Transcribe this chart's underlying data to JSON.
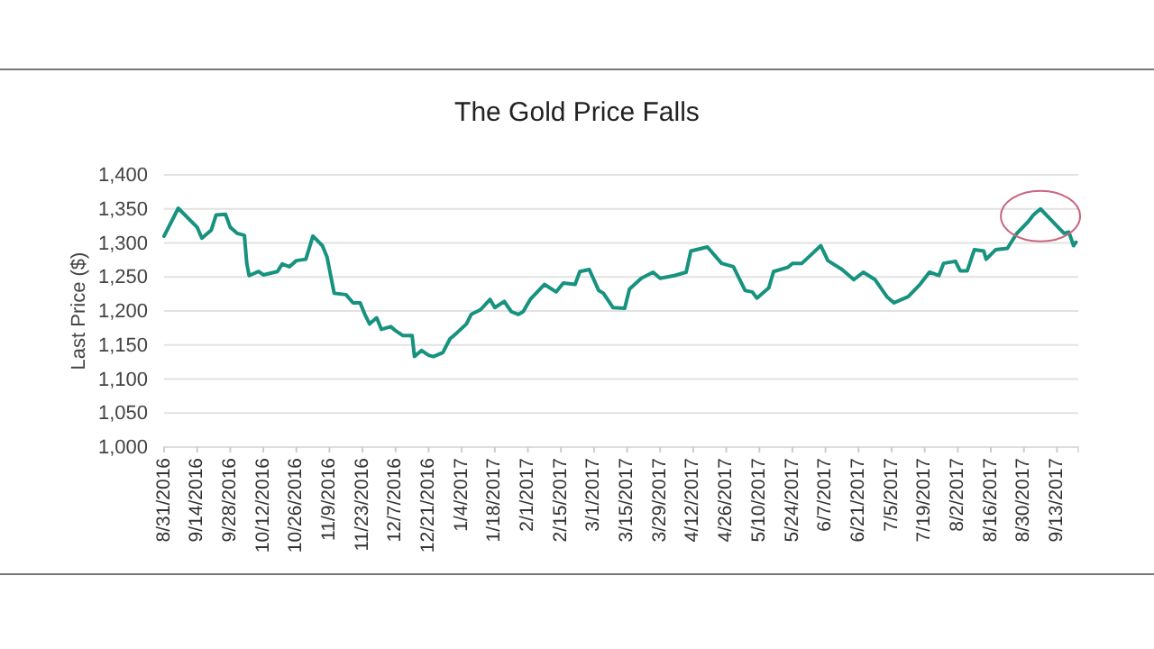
{
  "chart_data": {
    "type": "line",
    "title": "The Gold Price Falls",
    "ylabel": "Last Price ($)",
    "x": [
      "2016-08-31",
      "2016-09-06",
      "2016-09-12",
      "2016-09-14",
      "2016-09-16",
      "2016-09-20",
      "2016-09-22",
      "2016-09-26",
      "2016-09-28",
      "2016-10-01",
      "2016-10-04",
      "2016-10-05",
      "2016-10-06",
      "2016-10-10",
      "2016-10-12",
      "2016-10-18",
      "2016-10-20",
      "2016-10-23",
      "2016-10-26",
      "2016-10-30",
      "2016-11-02",
      "2016-11-06",
      "2016-11-08",
      "2016-11-11",
      "2016-11-16",
      "2016-11-19",
      "2016-11-22",
      "2016-11-24",
      "2016-11-26",
      "2016-11-29",
      "2016-12-01",
      "2016-12-05",
      "2016-12-07",
      "2016-12-10",
      "2016-12-14",
      "2016-12-15",
      "2016-12-18",
      "2016-12-21",
      "2016-12-23",
      "2016-12-27",
      "2016-12-30",
      "2017-01-02",
      "2017-01-06",
      "2017-01-08",
      "2017-01-12",
      "2017-01-16",
      "2017-01-18",
      "2017-01-22",
      "2017-01-25",
      "2017-01-28",
      "2017-01-30",
      "2017-02-02",
      "2017-02-08",
      "2017-02-13",
      "2017-02-16",
      "2017-02-21",
      "2017-02-23",
      "2017-02-27",
      "2017-03-03",
      "2017-03-05",
      "2017-03-09",
      "2017-03-14",
      "2017-03-16",
      "2017-03-21",
      "2017-03-26",
      "2017-03-29",
      "2017-04-04",
      "2017-04-09",
      "2017-04-11",
      "2017-04-18",
      "2017-04-24",
      "2017-04-29",
      "2017-05-04",
      "2017-05-07",
      "2017-05-09",
      "2017-05-14",
      "2017-05-16",
      "2017-05-22",
      "2017-05-24",
      "2017-05-28",
      "2017-06-01",
      "2017-06-05",
      "2017-06-08",
      "2017-06-14",
      "2017-06-19",
      "2017-06-23",
      "2017-06-28",
      "2017-07-03",
      "2017-07-06",
      "2017-07-12",
      "2017-07-17",
      "2017-07-21",
      "2017-07-25",
      "2017-07-27",
      "2017-08-01",
      "2017-08-03",
      "2017-08-06",
      "2017-08-09",
      "2017-08-13",
      "2017-08-14",
      "2017-08-18",
      "2017-08-23",
      "2017-08-27",
      "2017-09-01",
      "2017-09-03",
      "2017-09-06",
      "2017-09-11",
      "2017-09-16",
      "2017-09-18",
      "2017-09-20",
      "2017-09-21"
    ],
    "series": [
      {
        "color": "#16927f",
        "values": [
          1310,
          1351,
          1330,
          1323,
          1307,
          1319,
          1341,
          1342,
          1323,
          1314,
          1311,
          1270,
          1252,
          1258,
          1253,
          1258,
          1269,
          1265,
          1274,
          1276,
          1310,
          1296,
          1279,
          1226,
          1224,
          1212,
          1212,
          1195,
          1181,
          1190,
          1173,
          1177,
          1171,
          1164,
          1164,
          1133,
          1142,
          1135,
          1133,
          1139,
          1159,
          1168,
          1181,
          1195,
          1202,
          1217,
          1205,
          1214,
          1199,
          1195,
          1199,
          1217,
          1239,
          1228,
          1241,
          1239,
          1258,
          1261,
          1230,
          1226,
          1205,
          1204,
          1232,
          1248,
          1257,
          1248,
          1252,
          1257,
          1288,
          1294,
          1270,
          1265,
          1230,
          1228,
          1219,
          1234,
          1258,
          1264,
          1270,
          1270,
          1283,
          1296,
          1274,
          1261,
          1246,
          1257,
          1246,
          1221,
          1212,
          1221,
          1239,
          1257,
          1252,
          1270,
          1273,
          1259,
          1259,
          1290,
          1288,
          1276,
          1290,
          1292,
          1314,
          1332,
          1341,
          1350,
          1332,
          1314,
          1316,
          1296,
          1301
        ]
      }
    ],
    "xlim": [
      "2016-08-31",
      "2017-09-22"
    ],
    "xticks": [
      {
        "value": "2016-08-31",
        "label": "8/31/2016"
      },
      {
        "value": "2016-09-14",
        "label": "9/14/2016"
      },
      {
        "value": "2016-09-28",
        "label": "9/28/2016"
      },
      {
        "value": "2016-10-12",
        "label": "10/12/2016"
      },
      {
        "value": "2016-10-26",
        "label": "10/26/2016"
      },
      {
        "value": "2016-11-09",
        "label": "11/9/2016"
      },
      {
        "value": "2016-11-23",
        "label": "11/23/2016"
      },
      {
        "value": "2016-12-07",
        "label": "12/7/2016"
      },
      {
        "value": "2016-12-21",
        "label": "12/21/2016"
      },
      {
        "value": "2017-01-04",
        "label": "1/4/2017"
      },
      {
        "value": "2017-01-18",
        "label": "1/18/2017"
      },
      {
        "value": "2017-02-01",
        "label": "2/1/2017"
      },
      {
        "value": "2017-02-15",
        "label": "2/15/2017"
      },
      {
        "value": "2017-03-01",
        "label": "3/1/2017"
      },
      {
        "value": "2017-03-15",
        "label": "3/15/2017"
      },
      {
        "value": "2017-03-29",
        "label": "3/29/2017"
      },
      {
        "value": "2017-04-12",
        "label": "4/12/2017"
      },
      {
        "value": "2017-04-26",
        "label": "4/26/2017"
      },
      {
        "value": "2017-05-10",
        "label": "5/10/2017"
      },
      {
        "value": "2017-05-24",
        "label": "5/24/2017"
      },
      {
        "value": "2017-06-07",
        "label": "6/7/2017"
      },
      {
        "value": "2017-06-21",
        "label": "6/21/2017"
      },
      {
        "value": "2017-07-05",
        "label": "7/5/2017"
      },
      {
        "value": "2017-07-19",
        "label": "7/19/2017"
      },
      {
        "value": "2017-08-02",
        "label": "8/2/2017"
      },
      {
        "value": "2017-08-16",
        "label": "8/16/2017"
      },
      {
        "value": "2017-08-30",
        "label": "8/30/2017"
      },
      {
        "value": "2017-09-13",
        "label": "9/13/2017"
      }
    ],
    "ylim": [
      1000,
      1400
    ],
    "yticks": [
      {
        "value": 1000,
        "label": "1,000"
      },
      {
        "value": 1050,
        "label": "1,050"
      },
      {
        "value": 1100,
        "label": "1,100"
      },
      {
        "value": 1150,
        "label": "1,150"
      },
      {
        "value": 1200,
        "label": "1,200"
      },
      {
        "value": 1250,
        "label": "1,250"
      },
      {
        "value": 1300,
        "label": "1,300"
      },
      {
        "value": 1350,
        "label": "1,350"
      },
      {
        "value": 1400,
        "label": "1,400"
      }
    ],
    "grid": "y",
    "line_style": "solid",
    "marker": "none"
  }
}
